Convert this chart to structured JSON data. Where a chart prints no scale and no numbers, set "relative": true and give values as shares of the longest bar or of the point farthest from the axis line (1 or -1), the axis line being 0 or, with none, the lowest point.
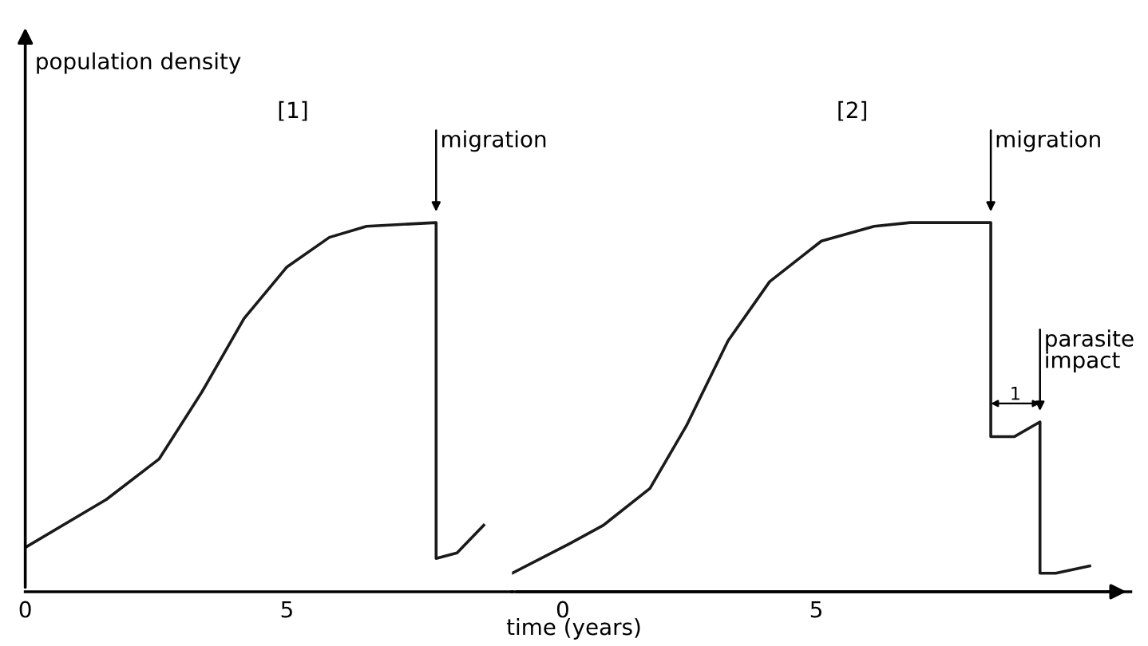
{
  "chart_data": [
    {
      "type": "line",
      "relative": true,
      "ylabel": "population density",
      "xlabel": "time (years)",
      "xlim": [
        0,
        9.3
      ],
      "xticks": [
        0,
        5
      ],
      "tick_labels": "x",
      "grid": false,
      "legend": false,
      "marker": "none",
      "line_style": "solid",
      "series": [
        {
          "color": "#1a1a1a",
          "x": [
            0,
            1.55,
            2.56,
            3.37,
            4.18,
            5.0,
            5.81,
            6.52,
            7.85,
            7.85,
            8.25,
            8.76
          ],
          "values": [
            0.12,
            0.25,
            0.36,
            0.54,
            0.74,
            0.88,
            0.96,
            0.99,
            1.0,
            0.09,
            0.105,
            0.18
          ]
        }
      ],
      "annotations": [
        "[1]",
        {
          "text": "migration",
          "x": 7.85,
          "y": 1.0
        }
      ]
    },
    {
      "type": "line",
      "relative": true,
      "xlim": [
        -1.0,
        11.2
      ],
      "xticks": [
        0,
        5
      ],
      "tick_labels": "x",
      "grid": false,
      "legend": false,
      "marker": "none",
      "line_style": "solid",
      "series": [
        {
          "color": "#1a1a1a",
          "x": [
            -1.0,
            0.13,
            0.8,
            1.72,
            2.44,
            3.26,
            4.08,
            5.1,
            6.14,
            6.85,
            8.44,
            8.44,
            8.9,
            9.41,
            9.41,
            9.72,
            10.39
          ],
          "values": [
            0.05,
            0.13,
            0.18,
            0.28,
            0.45,
            0.68,
            0.84,
            0.95,
            0.99,
            1.0,
            1.0,
            0.42,
            0.42,
            0.46,
            0.05,
            0.05,
            0.07
          ]
        }
      ],
      "annotations": [
        "[2]",
        {
          "text": "migration",
          "x": 8.44,
          "y": 1.0
        },
        {
          "text": "parasite\nimpact",
          "x": 9.41,
          "y": 0.46
        },
        "1"
      ]
    }
  ]
}
